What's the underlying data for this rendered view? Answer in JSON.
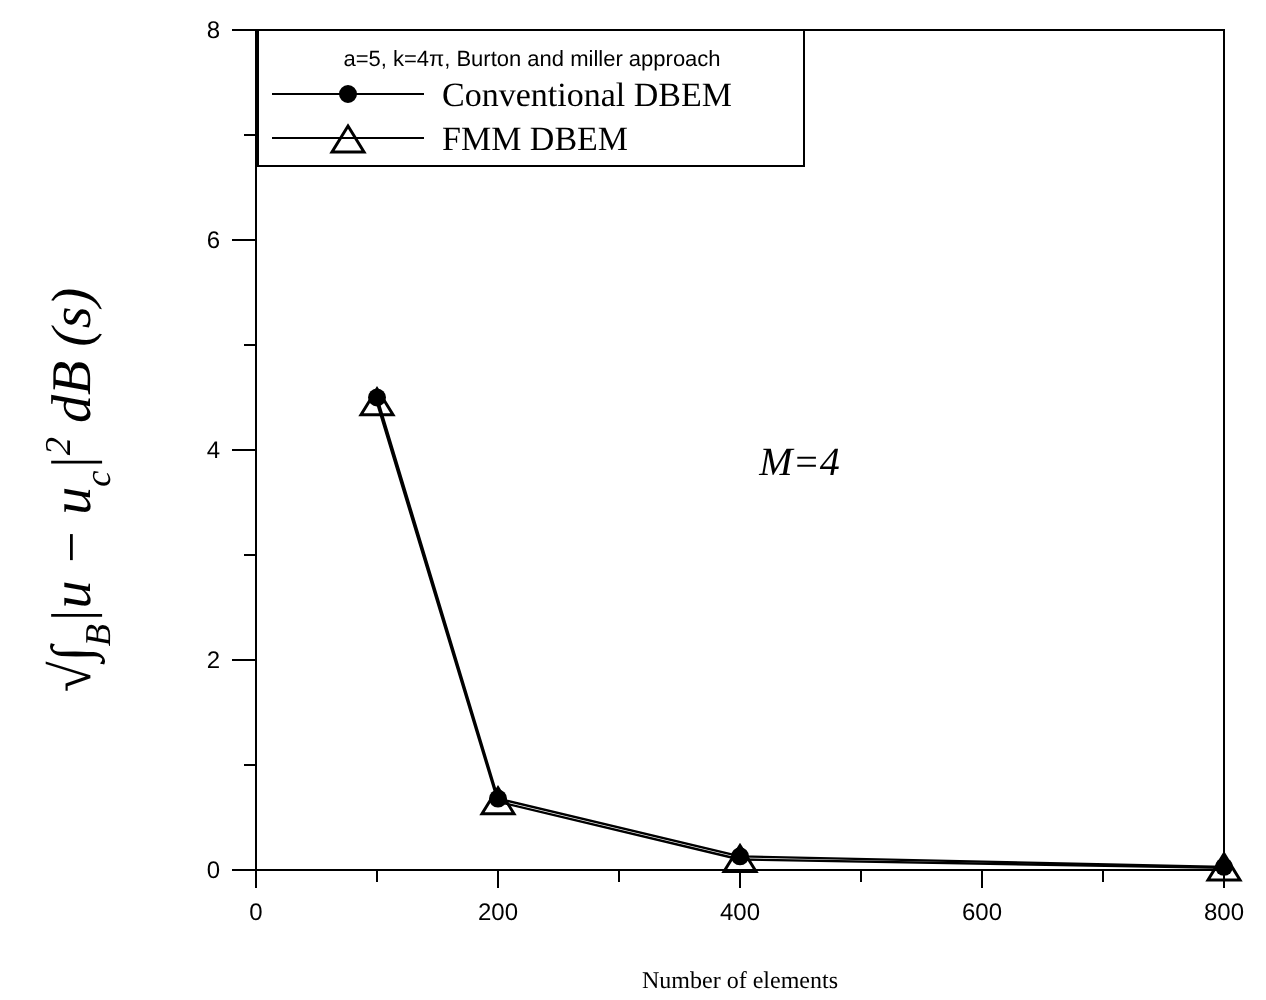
{
  "chart_data": {
    "type": "line",
    "xlabel": "Number of  elements",
    "ylabel": "√∫$_{B}$|u − u$_{c}$|$^{2}$ dB (s)",
    "legend_title": "a=5, k=4π, Burton and miller approach",
    "legend": "top left",
    "grid": false,
    "x": [
      100,
      200,
      400,
      800
    ],
    "series": [
      {
        "name": "Conventional DBEM",
        "color": "#000000",
        "marker": "circle",
        "values": [
          4.5,
          0.68,
          0.13,
          0.03
        ]
      },
      {
        "name": "FMM DBEM",
        "color": "#000000",
        "marker": "triangle",
        "values": [
          4.45,
          0.65,
          0.1,
          0.02
        ]
      }
    ],
    "xlim": [
      0,
      800
    ],
    "xticks": [
      0,
      {
        "value": 100,
        "label": null
      },
      200,
      {
        "value": 300,
        "label": null
      },
      400,
      {
        "value": 500,
        "label": null
      },
      600,
      {
        "value": 700,
        "label": null
      },
      800
    ],
    "ylim": [
      0,
      8
    ],
    "yticks": [
      0,
      {
        "value": 1,
        "label": null
      },
      2,
      {
        "value": 3,
        "label": null
      },
      4,
      {
        "value": 5,
        "label": null
      },
      6,
      {
        "value": 7,
        "label": null
      },
      8
    ],
    "annotations": [
      "M=4"
    ]
  }
}
